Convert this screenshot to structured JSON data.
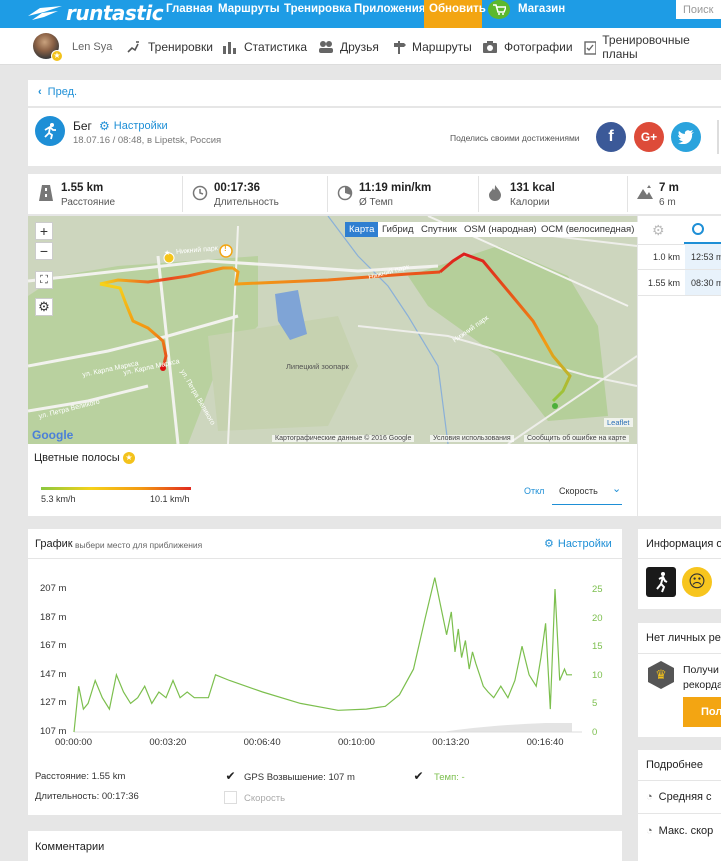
{
  "topnav": {
    "brand": "runtastic",
    "items": [
      "Главная",
      "Маршруты",
      "Тренировка",
      "Приложения"
    ],
    "upgrade": "Обновить",
    "shop": "Магазин",
    "search_placeholder": "Поиск"
  },
  "subnav": {
    "user": "Len Sya",
    "items": [
      "Тренировки",
      "Статистика",
      "Друзья",
      "Маршруты",
      "Фотографии",
      "Тренировочные планы"
    ]
  },
  "back": "Пред.",
  "activity": {
    "type": "Бег",
    "settings": "Настройки",
    "meta": "18.07.16 / 08:48, в Lipetsk, Россия",
    "share_text": "Поделись своими достижениями",
    "share_buttons": [
      "f",
      "G+",
      "twitter-bird"
    ]
  },
  "stats": [
    {
      "value": "1.55 km",
      "label": "Расстояние",
      "icon": "road-icon"
    },
    {
      "value": "00:17:36",
      "label": "Длительность",
      "icon": "clock-icon"
    },
    {
      "value": "11:19 min/km",
      "label": "Ø Темп",
      "icon": "pace-icon"
    },
    {
      "value": "131 kcal",
      "label": "Калории",
      "icon": "flame-icon"
    },
    {
      "value": "7 m",
      "label": "6 m",
      "icon": "elevation-icon"
    }
  ],
  "map": {
    "tabs": [
      "Карта",
      "Гибрид",
      "Спутник",
      "OSM (народная)",
      "ОСМ (велосипедная)"
    ],
    "active_tab": "Карта",
    "labels": [
      "Нижний парк",
      "Нижний парк",
      "Нижний парк",
      "Липецкий зоопарк",
      "ул. Карла Маркса",
      "ул. Карла Маркса",
      "ул. Петра Великого",
      "ул. Петра Великого"
    ],
    "attribution": "Картографические данные © 2016 Google",
    "terms": "Условия использования",
    "report": "Сообщить об ошибке на карте",
    "leaflet": "Leaflet",
    "google": "Google"
  },
  "colorbars": {
    "title": "Цветные полосы",
    "min": "5.3 km/h",
    "max": "10.1 km/h",
    "off": "Откл",
    "speed": "Скорость"
  },
  "splits": {
    "rows": [
      {
        "dist": "1.0 km",
        "time": "12:53 m"
      },
      {
        "dist": "1.55 km",
        "time": "08:30 m"
      }
    ]
  },
  "graph": {
    "title": "График",
    "hint": "выбери место для приближения",
    "settings": "Настройки",
    "legend": {
      "distance_label": "Расстояние:",
      "distance_value": "1.55 km",
      "duration_label": "Длительность:",
      "duration_value": "00:17:36",
      "gps_label": "GPS Возвышение:",
      "gps_value": "107 m",
      "pace_label": "Темп: -",
      "speed_label": "Скорость"
    }
  },
  "chart_data": {
    "type": "line",
    "x_ticks": [
      "00:00:00",
      "00:03:20",
      "00:06:40",
      "00:10:00",
      "00:13:20",
      "00:16:40"
    ],
    "y_left_ticks": [
      "207 m",
      "187 m",
      "167 m",
      "147 m",
      "127 m",
      "107 m"
    ],
    "y_right_ticks": [
      "25",
      "20",
      "15",
      "10",
      "5",
      "0"
    ],
    "ylim_left": [
      107,
      207
    ],
    "ylim_right": [
      0,
      25
    ],
    "series": [
      {
        "name": "Темп",
        "axis": "right",
        "color": "#7cbf4e",
        "x_seconds": [
          0,
          10,
          20,
          30,
          45,
          60,
          75,
          90,
          105,
          120,
          135,
          150,
          165,
          180,
          195,
          210,
          225,
          240,
          255,
          270,
          285,
          300,
          330,
          400,
          480,
          560,
          620,
          660,
          690,
          720,
          745,
          765,
          790,
          800,
          808,
          815,
          822,
          830,
          838,
          845,
          852,
          860,
          868,
          878,
          890,
          905,
          920,
          935,
          950,
          965,
          980,
          990,
          1000,
          1010,
          1020,
          1030,
          1040,
          1045,
          1056
        ],
        "values": [
          0,
          8,
          4,
          5,
          9,
          6,
          4,
          10,
          7,
          5,
          6,
          8,
          5,
          7,
          6,
          9,
          6,
          7,
          6,
          6,
          6,
          10,
          9,
          7,
          5,
          3.8,
          4,
          4.5,
          6.5,
          11,
          20,
          27,
          17,
          21,
          14,
          18,
          13,
          16,
          11,
          14,
          12,
          10,
          8,
          7,
          6,
          8,
          6,
          9,
          15,
          10,
          8,
          13,
          19,
          4,
          25,
          9,
          11,
          10,
          10
        ]
      }
    ]
  },
  "side": {
    "info_title": "Информация о",
    "no_records": "Нет личных рек",
    "records_text": "Получи рекорда",
    "records_btn": "Пол",
    "details": "Подробнее",
    "avg": "Средняя с",
    "max": "Макс. скор"
  },
  "comments": "Комментарии"
}
